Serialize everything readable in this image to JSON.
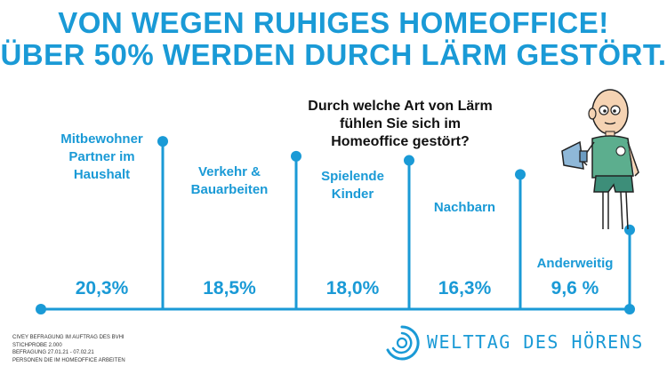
{
  "title_lines": [
    "VON WEGEN RUHIGES HOMEOFFICE!",
    "ÜBER 50% WERDEN DURCH LÄRM GESTÖRT."
  ],
  "question_lines": [
    "Durch welche Art von Lärm",
    "fühlen Sie sich im",
    "Homeoffice gestört?"
  ],
  "chart_data": {
    "type": "bar",
    "categories": [
      "Mitbewohner Partner im Haushalt",
      "Verkehr & Bauarbeiten",
      "Spielende Kinder",
      "Nachbarn",
      "Anderweitig"
    ],
    "category_label_lines": [
      [
        "Mitbewohner",
        "Partner im",
        "Haushalt"
      ],
      [
        "Verkehr &",
        "Bauarbeiten"
      ],
      [
        "Spielende",
        "Kinder"
      ],
      [
        "Nachbarn"
      ],
      [
        "Anderweitig"
      ]
    ],
    "values": [
      20.3,
      18.5,
      18.0,
      16.3,
      9.6
    ],
    "value_labels": [
      "20,3%",
      "18,5%",
      "18,0%",
      "16,3%",
      "9,6 %"
    ],
    "title": "Durch welche Art von Lärm fühlen Sie sich im Homeoffice gestört?",
    "xlabel": "",
    "ylabel": "",
    "ylim": [
      0,
      21.5
    ],
    "grid": false,
    "color": "#1a9ad6"
  },
  "source_lines": [
    "CIVEY BEFRAGUNG IM AUFTRAG DES BVHI",
    "STICHPROBE 2.000",
    "BEFRAGUNG 27.01.21 - 07.02.21",
    "PERSONEN DIE IM HOMEOFFICE ARBEITEN"
  ],
  "brand": {
    "name": "WELTTAG DES HÖRENS",
    "logo_icon": "ear-wave-icon"
  },
  "mascot_icon": "man-with-megaphone-illustration",
  "colors": {
    "accent": "#1a9ad6",
    "text": "#111111"
  }
}
